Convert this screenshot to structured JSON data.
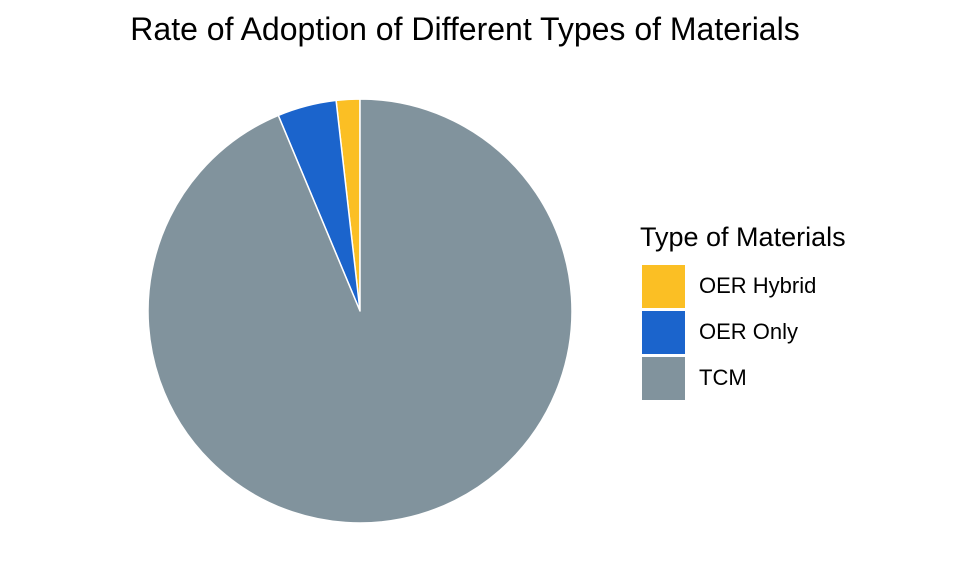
{
  "chart_data": {
    "type": "pie",
    "title": "Rate of Adoption of Different Types of Materials",
    "legend": {
      "title": "Type of Materials",
      "placement": "right"
    },
    "slices": [
      {
        "label": "OER Hybrid",
        "value": 1.8,
        "color": "#FBBF24"
      },
      {
        "label": "OER Only",
        "value": 4.5,
        "color": "#1B64CC"
      },
      {
        "label": "TCM",
        "value": 93.7,
        "color": "#81939D"
      }
    ],
    "direction": "counterclockwise",
    "start_angle": "top"
  }
}
